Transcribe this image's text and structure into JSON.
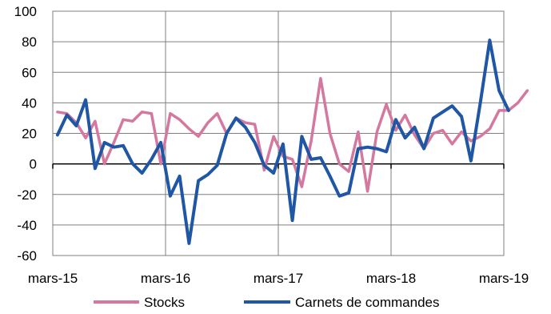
{
  "chart_data": {
    "type": "line",
    "x_tick_labels": [
      "mars-15",
      "mars-16",
      "mars-17",
      "mars-18",
      "mars-19"
    ],
    "y_ticks": [
      100,
      80,
      60,
      40,
      20,
      0,
      -20,
      -40,
      -60
    ],
    "ylim": [
      -60,
      100
    ],
    "grid": true,
    "legend_position": "bottom",
    "series": [
      {
        "name": "Stocks",
        "color": "#d4789f",
        "values": [
          34,
          33,
          27,
          17,
          28,
          0,
          14,
          29,
          28,
          34,
          33,
          0,
          33,
          29,
          23,
          18,
          27,
          33,
          20,
          30,
          27,
          26,
          -4,
          18,
          5,
          3,
          -15,
          15,
          56,
          20,
          0,
          -5,
          21,
          -18,
          21,
          39,
          22,
          32,
          19,
          10,
          20,
          22,
          13,
          21,
          15,
          18,
          23,
          35,
          35,
          40,
          48
        ]
      },
      {
        "name": "Carnets de commandes",
        "color": "#1f57a5",
        "values": [
          19,
          32,
          25,
          42,
          -3,
          14,
          11,
          12,
          0,
          -6,
          3,
          14,
          -21,
          -8,
          -52,
          -11,
          -7,
          -1,
          20,
          30,
          24,
          14,
          -1,
          -6,
          13,
          -37,
          18,
          3,
          4,
          -8,
          -21,
          -19,
          10,
          11,
          10,
          8,
          29,
          17,
          24,
          10,
          30,
          34,
          38,
          31,
          2,
          40,
          81,
          48,
          35
        ]
      }
    ]
  }
}
